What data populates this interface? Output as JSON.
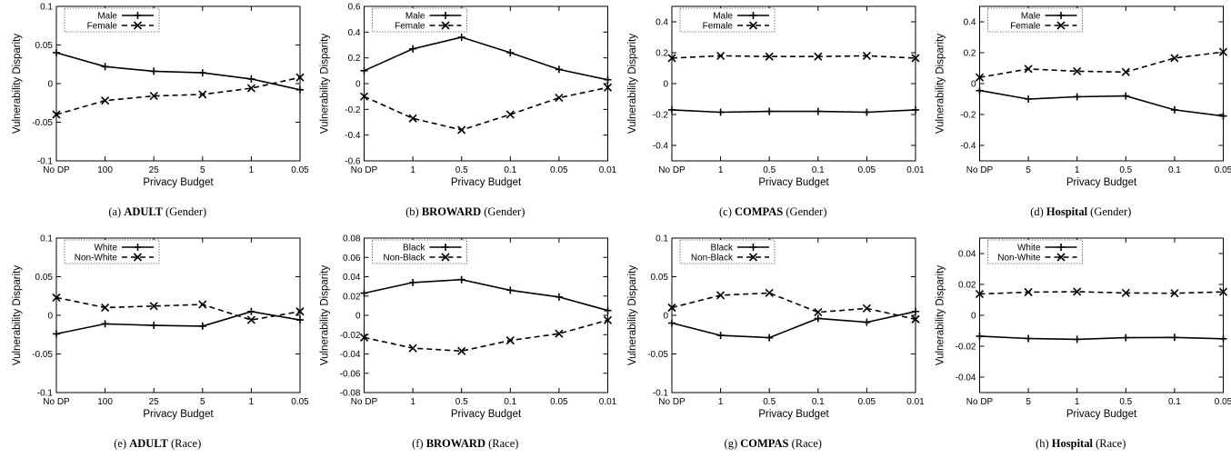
{
  "chart_data": [
    {
      "type": "line",
      "caption": {
        "label": "(a)",
        "dataset": "ADULT",
        "attribute": "(Gender)"
      },
      "xlabel": "Privacy Budget",
      "ylabel": "Vulnerability Disparity",
      "categories": [
        "No DP",
        "100",
        "25",
        "5",
        "1",
        "0.05"
      ],
      "ylim": [
        -0.1,
        0.1
      ],
      "yticks": [
        "-0.1",
        "-0.05",
        "0",
        "0.05",
        "0.1"
      ],
      "series": [
        {
          "name": "Male",
          "marker": "plus",
          "dash": "solid",
          "values": [
            0.04,
            0.022,
            0.016,
            0.014,
            0.006,
            -0.008
          ]
        },
        {
          "name": "Female",
          "marker": "x",
          "dash": "dashed",
          "values": [
            -0.04,
            -0.022,
            -0.016,
            -0.014,
            -0.006,
            0.008
          ]
        }
      ],
      "legend": "top-left"
    },
    {
      "type": "line",
      "caption": {
        "label": "(b)",
        "dataset": "BROWARD",
        "attribute": "(Gender)"
      },
      "xlabel": "Privacy Budget",
      "ylabel": "Vulnerability Disparity",
      "categories": [
        "No DP",
        "1",
        "0.5",
        "0.1",
        "0.05",
        "0.01"
      ],
      "ylim": [
        -0.6,
        0.6
      ],
      "yticks": [
        "-0.6",
        "-0.4",
        "-0.2",
        "0",
        "0.2",
        "0.4",
        "0.6"
      ],
      "series": [
        {
          "name": "Male",
          "marker": "plus",
          "dash": "solid",
          "values": [
            0.1,
            0.27,
            0.36,
            0.24,
            0.11,
            0.03
          ]
        },
        {
          "name": "Female",
          "marker": "x",
          "dash": "dashed",
          "values": [
            -0.1,
            -0.27,
            -0.36,
            -0.24,
            -0.11,
            -0.03
          ]
        }
      ],
      "legend": "top-left"
    },
    {
      "type": "line",
      "caption": {
        "label": "(c)",
        "dataset": "COMPAS",
        "attribute": "(Gender)"
      },
      "xlabel": "Privacy Budget",
      "ylabel": "Vulnerability Disparity",
      "categories": [
        "No DP",
        "1",
        "0.5",
        "0.1",
        "0.05",
        "0.01"
      ],
      "ylim": [
        -0.5,
        0.5
      ],
      "yticks": [
        "-0.4",
        "-0.2",
        "0",
        "0.2",
        "0.4"
      ],
      "series": [
        {
          "name": "Male",
          "marker": "plus",
          "dash": "solid",
          "values": [
            -0.17,
            -0.185,
            -0.18,
            -0.18,
            -0.185,
            -0.17
          ]
        },
        {
          "name": "Female",
          "marker": "x",
          "dash": "dashed",
          "values": [
            0.165,
            0.18,
            0.175,
            0.175,
            0.18,
            0.165
          ]
        }
      ],
      "legend": "top-left"
    },
    {
      "type": "line",
      "caption": {
        "label": "(d)",
        "dataset": "Hospital",
        "attribute": "(Gender)"
      },
      "xlabel": "Privacy Budget",
      "ylabel": "Vulnerability Disparity",
      "categories": [
        "No DP",
        "5",
        "1",
        "0.5",
        "0.1",
        "0.05"
      ],
      "ylim": [
        -0.5,
        0.5
      ],
      "yticks": [
        "-0.4",
        "-0.2",
        "0",
        "0.2",
        "0.4"
      ],
      "series": [
        {
          "name": "Male",
          "marker": "plus",
          "dash": "solid",
          "values": [
            -0.045,
            -0.1,
            -0.085,
            -0.08,
            -0.17,
            -0.21
          ]
        },
        {
          "name": "Female",
          "marker": "x",
          "dash": "dashed",
          "values": [
            0.04,
            0.095,
            0.08,
            0.075,
            0.165,
            0.205
          ]
        }
      ],
      "legend": "top-left"
    },
    {
      "type": "line",
      "caption": {
        "label": "(e)",
        "dataset": "ADULT",
        "attribute": "(Race)"
      },
      "xlabel": "Privacy Budget",
      "ylabel": "Vulnerability Disparity",
      "categories": [
        "No DP",
        "100",
        "25",
        "5",
        "1",
        "0.05"
      ],
      "ylim": [
        -0.1,
        0.1
      ],
      "yticks": [
        "-0.1",
        "-0.05",
        "0",
        "0.05",
        "0.1"
      ],
      "series": [
        {
          "name": "White",
          "marker": "plus",
          "dash": "solid",
          "values": [
            -0.024,
            -0.011,
            -0.013,
            -0.014,
            0.005,
            -0.006
          ]
        },
        {
          "name": "Non-White",
          "marker": "x",
          "dash": "dashed",
          "values": [
            0.023,
            0.01,
            0.012,
            0.014,
            -0.006,
            0.005
          ]
        }
      ],
      "legend": "top-left"
    },
    {
      "type": "line",
      "caption": {
        "label": "(f)",
        "dataset": "BROWARD",
        "attribute": "(Race)"
      },
      "xlabel": "Privacy Budget",
      "ylabel": "Vulnerability Disparity",
      "categories": [
        "No DP",
        "1",
        "0.5",
        "0.1",
        "0.05",
        "0.01"
      ],
      "ylim": [
        -0.08,
        0.08
      ],
      "yticks": [
        "-0.08",
        "-0.06",
        "-0.04",
        "-0.02",
        "0",
        "0.02",
        "0.04",
        "0.06",
        "0.08"
      ],
      "series": [
        {
          "name": "Black",
          "marker": "plus",
          "dash": "solid",
          "values": [
            0.023,
            0.034,
            0.037,
            0.026,
            0.019,
            0.005
          ]
        },
        {
          "name": "Non-Black",
          "marker": "x",
          "dash": "dashed",
          "values": [
            -0.023,
            -0.034,
            -0.037,
            -0.026,
            -0.019,
            -0.005
          ]
        }
      ],
      "legend": "top-left"
    },
    {
      "type": "line",
      "caption": {
        "label": "(g)",
        "dataset": "COMPAS",
        "attribute": "(Race)"
      },
      "xlabel": "Privacy Budget",
      "ylabel": "Vulnerability Disparity",
      "categories": [
        "No DP",
        "1",
        "0.5",
        "0.1",
        "0.05",
        "0.01"
      ],
      "ylim": [
        -0.1,
        0.1
      ],
      "yticks": [
        "-0.1",
        "-0.05",
        "0",
        "0.05",
        "0.1"
      ],
      "series": [
        {
          "name": "Black",
          "marker": "plus",
          "dash": "solid",
          "values": [
            -0.01,
            -0.026,
            -0.029,
            -0.004,
            -0.009,
            0.005
          ]
        },
        {
          "name": "Non-Black",
          "marker": "x",
          "dash": "dashed",
          "values": [
            0.01,
            0.026,
            0.029,
            0.004,
            0.009,
            -0.005
          ]
        }
      ],
      "legend": "top-left"
    },
    {
      "type": "line",
      "caption": {
        "label": "(h)",
        "dataset": "Hospital",
        "attribute": "(Race)"
      },
      "xlabel": "Privacy Budget",
      "ylabel": "Vulnerability Disparity",
      "categories": [
        "No DP",
        "5",
        "1",
        "0.5",
        "0.1",
        "0.05"
      ],
      "ylim": [
        -0.05,
        0.05
      ],
      "yticks": [
        "-0.04",
        "-0.02",
        "0",
        "0.02",
        "0.04"
      ],
      "series": [
        {
          "name": "White",
          "marker": "plus",
          "dash": "solid",
          "values": [
            -0.0135,
            -0.015,
            -0.0155,
            -0.0145,
            -0.0143,
            -0.0152
          ]
        },
        {
          "name": "Non-White",
          "marker": "x",
          "dash": "dashed",
          "values": [
            0.0138,
            0.015,
            0.0153,
            0.0145,
            0.0143,
            0.0152
          ]
        }
      ],
      "legend": "top-left"
    }
  ]
}
